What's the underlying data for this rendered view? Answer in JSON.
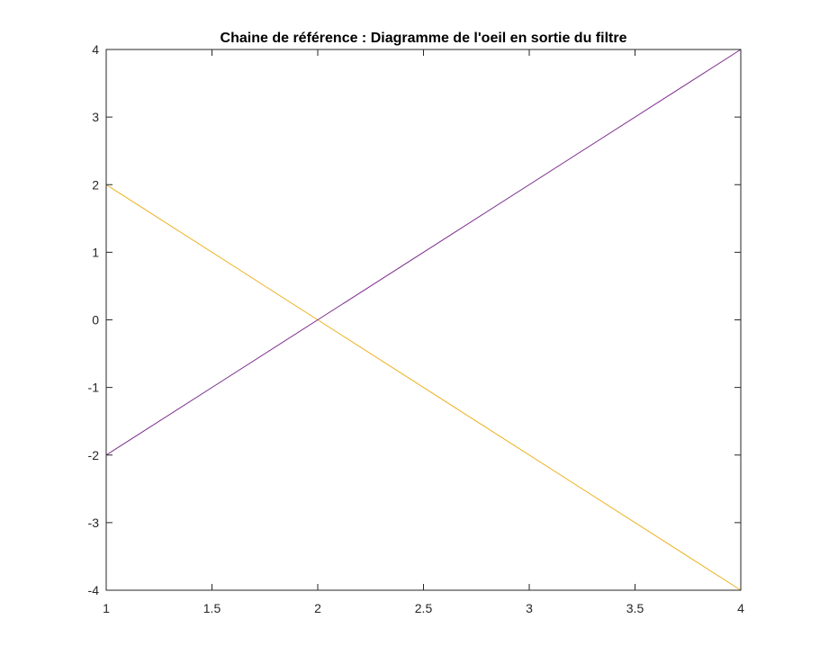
{
  "chart_data": {
    "type": "line",
    "title": "Chaine de référence : Diagramme de l'oeil en sortie du filtre",
    "xlabel": "",
    "ylabel": "",
    "xlim": [
      1,
      4
    ],
    "ylim": [
      -4,
      4
    ],
    "grid": false,
    "xticks": [
      {
        "value": 1,
        "label": "1"
      },
      {
        "value": 1.5,
        "label": "1.5"
      },
      {
        "value": 2,
        "label": "2"
      },
      {
        "value": 2.5,
        "label": "2.5"
      },
      {
        "value": 3,
        "label": "3"
      },
      {
        "value": 3.5,
        "label": "3.5"
      },
      {
        "value": 4,
        "label": "4"
      }
    ],
    "yticks": [
      {
        "value": -4,
        "label": "-4"
      },
      {
        "value": -3,
        "label": "-3"
      },
      {
        "value": -2,
        "label": "-2"
      },
      {
        "value": -1,
        "label": "-1"
      },
      {
        "value": 0,
        "label": "0"
      },
      {
        "value": 1,
        "label": "1"
      },
      {
        "value": 2,
        "label": "2"
      },
      {
        "value": 3,
        "label": "3"
      },
      {
        "value": 4,
        "label": "4"
      }
    ],
    "series": [
      {
        "color": "#0072BD",
        "x": [
          1,
          4
        ],
        "y": [
          -4,
          -4
        ]
      },
      {
        "color": "#EDB120",
        "x": [
          1,
          4
        ],
        "y": [
          2,
          -4
        ]
      },
      {
        "color": "#7E2F8E",
        "x": [
          1,
          4
        ],
        "y": [
          -2,
          4
        ]
      },
      {
        "color": "#7E2F8E",
        "x": [
          1,
          4
        ],
        "y": [
          4,
          4
        ]
      }
    ]
  }
}
